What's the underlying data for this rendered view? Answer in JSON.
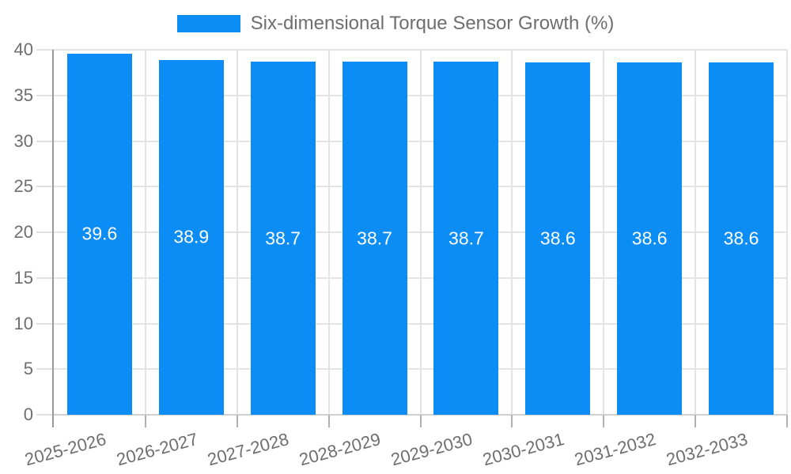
{
  "chart_data": {
    "type": "bar",
    "title": "Six-dimensional Torque Sensor Growth (%)",
    "categories": [
      "2025-2026",
      "2026-2027",
      "2027-2028",
      "2028-2029",
      "2029-2030",
      "2030-2031",
      "2031-2032",
      "2032-2033"
    ],
    "values": [
      39.6,
      38.9,
      38.7,
      38.7,
      38.7,
      38.6,
      38.6,
      38.6
    ],
    "value_labels": [
      "39.6",
      "38.9",
      "38.7",
      "38.7",
      "38.7",
      "38.6",
      "38.6",
      "38.6"
    ],
    "xlabel": "",
    "ylabel": "",
    "ylim": [
      0,
      40
    ],
    "yticks": [
      0,
      5,
      10,
      15,
      20,
      25,
      30,
      35,
      40
    ],
    "grid": true,
    "legend_position": "top-center",
    "bar_color": "#0b8df5",
    "value_label_color": "#ffffff"
  },
  "legend": {
    "label": "Six-dimensional Torque Sensor Growth (%)",
    "swatch_color": "#0b8df5"
  },
  "colors": {
    "background": "#ffffff",
    "accent": "#0b8df5",
    "grid": "#e4e4e4",
    "baseline": "#d0d0d0",
    "axis_line": "#999999",
    "axis_tick": "#b0b0b0",
    "y_tick": "#e0e0e0",
    "label_text": "#6e6e6e"
  }
}
